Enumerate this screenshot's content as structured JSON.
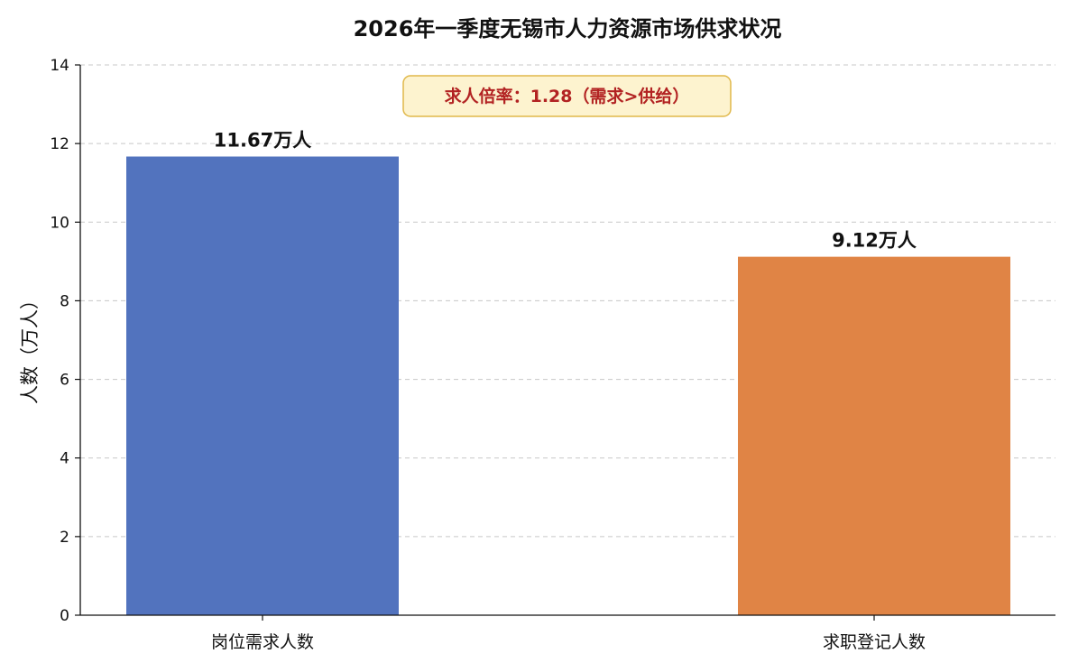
{
  "chart_data": {
    "type": "bar",
    "title": "2026年一季度无锡市人力资源市场供求状况",
    "xlabel": "",
    "ylabel": "人数（万人）",
    "ylim": [
      0,
      14
    ],
    "yticks": [
      "0",
      "2",
      "4",
      "6",
      "8",
      "10",
      "12",
      "14"
    ],
    "categories": [
      "岗位需求人数",
      "求职登记人数"
    ],
    "values": [
      11.67,
      9.12
    ],
    "data_labels": [
      "11.67万人",
      "9.12万人"
    ],
    "colors": [
      "#5273BE",
      "#E08445"
    ],
    "grid": "horizontal-dashed",
    "annotation": {
      "text": "求人倍率：1.28（需求>供给）",
      "text_color": "#B22222",
      "box_fill": "#FDF3CF",
      "box_border": "#E0B84A"
    }
  }
}
